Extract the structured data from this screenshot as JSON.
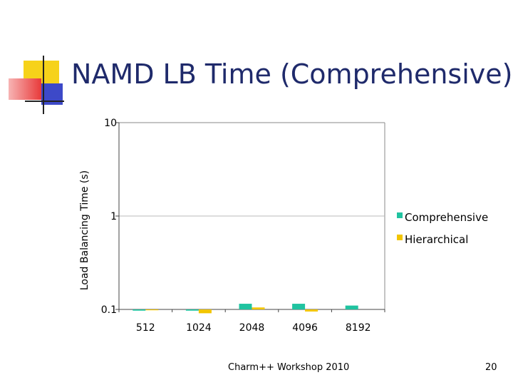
{
  "slide": {
    "title": "NAMD LB Time (Comprehensive)",
    "footer": "Charm++ Workshop 2010",
    "page_number": "20"
  },
  "colors": {
    "title": "#1f2a6b",
    "series_1": "#20c3a0",
    "series_2": "#f2c500"
  },
  "chart_data": {
    "type": "bar",
    "title": "",
    "xlabel": "",
    "ylabel": "Load Balancing Time (s)",
    "yscale": "log",
    "ylim": [
      0.1,
      10
    ],
    "yticks": [
      "10",
      "1",
      "0.1"
    ],
    "ytick_values": [
      10,
      1,
      0.1
    ],
    "categories": [
      "512",
      "1024",
      "2048",
      "4096",
      "8192"
    ],
    "series": [
      {
        "name": "Comprehensive",
        "values": [
          0.097,
          0.097,
          0.115,
          0.115,
          0.11
        ]
      },
      {
        "name": "Hierarchical",
        "values": [
          0.098,
          0.091,
          0.105,
          0.095,
          null
        ]
      }
    ],
    "legend_position": "right"
  }
}
